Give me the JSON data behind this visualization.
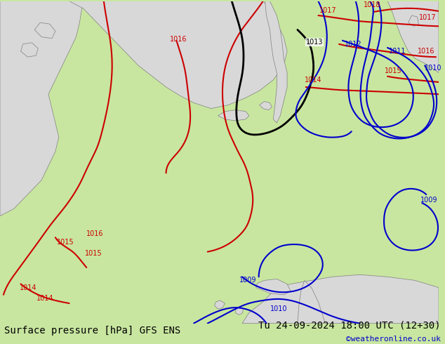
{
  "background_color": "#c8e6a0",
  "land_color": "#d8d8d8",
  "map_color": "#c8e6a0",
  "bottom_bar_color": "#c8e6a0",
  "title_left": "Surface pressure [hPa] GFS ENS",
  "title_right": "Tu 24-09-2024 18:00 UTC (12+30)",
  "credit": "©weatheronline.co.uk",
  "text_color": "#000000",
  "credit_color": "#0000cc",
  "figsize": [
    6.34,
    4.9
  ],
  "dpi": 100,
  "red_contour_color": "#cc0000",
  "blue_contour_color": "#0000cc",
  "black_contour_color": "#000000",
  "land_outline_color": "#808080",
  "font_size_title": 10,
  "font_size_label": 8,
  "font_size_credit": 8
}
